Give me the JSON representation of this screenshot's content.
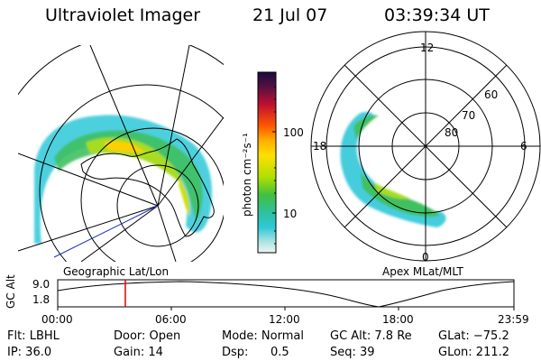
{
  "header": {
    "instrument": "Ultraviolet Imager",
    "date": "21 Jul 07",
    "time": "03:39:34 UT"
  },
  "geo_panel": {
    "label": "Geographic Lat/Lon"
  },
  "polar_panel": {
    "label": "Apex MLat/MLT",
    "mlt_labels": [
      "12",
      "18",
      "6",
      "0"
    ],
    "lat_labels": [
      "60",
      "70",
      "80"
    ]
  },
  "colorbar": {
    "unit_label": "photon cm⁻²s⁻¹",
    "ticks": [
      "100",
      "10"
    ],
    "scale": "log",
    "colors": [
      "#1b0b40",
      "#c01030",
      "#ff8a00",
      "#ffd000",
      "#b0e000",
      "#30c040",
      "#30c0c0",
      "#e8f0f0"
    ]
  },
  "timeline": {
    "ylabel": "GC Alt",
    "yticks": [
      "9.0",
      "1.8"
    ],
    "xticks": [
      "00:00",
      "06:00",
      "12:00",
      "18:00",
      "23:59"
    ],
    "marker_time": "03:39",
    "marker_color": "#e00000"
  },
  "footer": {
    "row1": {
      "filter": "Flt: LBHL",
      "door": "Door: Open",
      "mode": "Mode: Normal",
      "gc_alt": "GC Alt: 7.8 Re",
      "glat": "GLat: −75.2"
    },
    "row2": {
      "ip": "IP: 36.0",
      "gain": "Gain: 14",
      "dsp_label": "Dsp:",
      "dsp_value": "0.5",
      "seq": "Seq: 39",
      "glon": "GLon: 211.2"
    }
  }
}
